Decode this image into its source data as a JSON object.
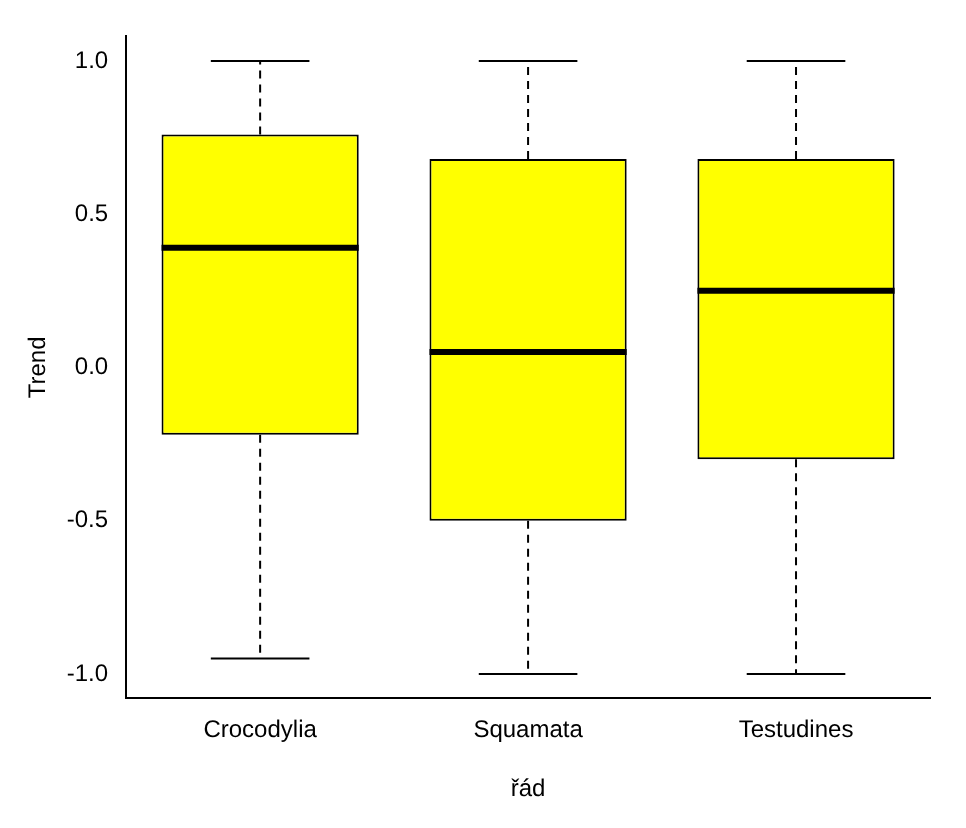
{
  "chart_data": {
    "type": "box",
    "xlabel": "řád",
    "ylabel": "Trend",
    "categories": [
      "Crocodylia",
      "Squamata",
      "Testudines"
    ],
    "color": "#ffff00",
    "boxes": [
      {
        "low": -0.95,
        "q1": -0.22,
        "median": 0.39,
        "q3": 0.76,
        "high": 1.0
      },
      {
        "low": -1.0,
        "q1": -0.5,
        "median": 0.05,
        "q3": 0.68,
        "high": 1.0
      },
      {
        "low": -1.0,
        "q1": -0.3,
        "median": 0.25,
        "q3": 0.68,
        "high": 1.0
      }
    ],
    "ylim": [
      -1.08,
      1.08
    ],
    "yticks": [
      {
        "value": -1,
        "label": "-1.0"
      },
      {
        "value": -0.5,
        "label": "-0.5"
      },
      {
        "value": 0,
        "label": "0.0"
      },
      {
        "value": 0.5,
        "label": "0.5"
      },
      {
        "value": 1,
        "label": "1.0"
      }
    ],
    "grid": false,
    "legend": false
  }
}
